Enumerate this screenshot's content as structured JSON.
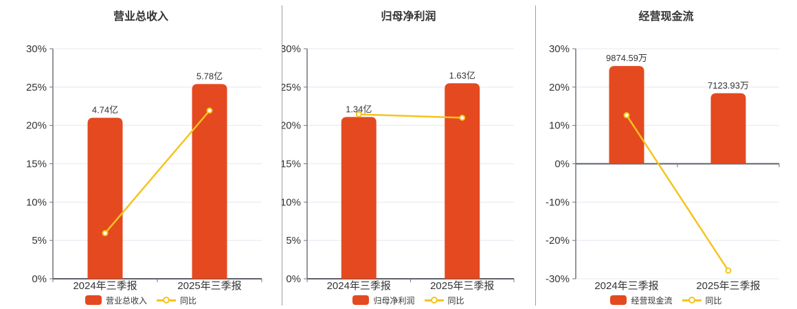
{
  "colors": {
    "bar": "#E5491F",
    "line": "#F5C31D",
    "grid": "#E4E8F1",
    "axis": "#6E737B",
    "zero_axis": "#5B6068",
    "text": "#333333",
    "divider": "#9A9DA3",
    "marker_fill": "#FFFFFF",
    "background": "#FFFFFF"
  },
  "chart_data": [
    {
      "type": "bar+line",
      "title": "营业总收入",
      "categories": [
        "2024年三季报",
        "2025年三季报"
      ],
      "bar_series": {
        "name": "营业总收入",
        "values": [
          4.74,
          5.78
        ],
        "unit": "亿",
        "value_labels": [
          "4.74亿",
          "5.78亿"
        ],
        "plotted_top_pct": [
          21.0,
          25.4
        ]
      },
      "line_series": {
        "name": "同比",
        "values_pct": [
          5.95,
          21.94
        ]
      },
      "ylim": [
        0,
        30
      ],
      "ytick_values": [
        30,
        25,
        20,
        15,
        10,
        5,
        0
      ],
      "ytick_labels": [
        "30%",
        "25%",
        "20%",
        "15%",
        "10%",
        "5%",
        "0%"
      ],
      "grid": "on",
      "legend_position": "bottom"
    },
    {
      "type": "bar+line",
      "title": "归母净利润",
      "categories": [
        "2024年三季报",
        "2025年三季报"
      ],
      "bar_series": {
        "name": "归母净利润",
        "values": [
          1.34,
          1.63
        ],
        "unit": "亿",
        "value_labels": [
          "1.34亿",
          "1.63亿"
        ],
        "plotted_top_pct": [
          21.1,
          25.5
        ]
      },
      "line_series": {
        "name": "同比",
        "values_pct": [
          21.45,
          21.0
        ]
      },
      "ylim": [
        0,
        30
      ],
      "ytick_values": [
        30,
        25,
        20,
        15,
        10,
        5,
        0
      ],
      "ytick_labels": [
        "30%",
        "25%",
        "20%",
        "15%",
        "10%",
        "5%",
        "0%"
      ],
      "grid": "on",
      "legend_position": "bottom"
    },
    {
      "type": "bar+line",
      "title": "经营现金流",
      "categories": [
        "2024年三季报",
        "2025年三季报"
      ],
      "bar_series": {
        "name": "经营现金流",
        "values": [
          9874.59,
          7123.93
        ],
        "unit": "万",
        "value_labels": [
          "9874.59万",
          "7123.93万"
        ],
        "plotted_top_pct": [
          25.5,
          18.4
        ]
      },
      "line_series": {
        "name": "同比",
        "values_pct": [
          12.67,
          -27.86
        ]
      },
      "ylim": [
        -30,
        30
      ],
      "ytick_values": [
        30,
        20,
        10,
        0,
        -10,
        -20,
        -30
      ],
      "ytick_labels": [
        "30%",
        "20%",
        "10%",
        "0%",
        "-10%",
        "-20%",
        "-30%"
      ],
      "grid": "on",
      "legend_position": "bottom"
    }
  ]
}
